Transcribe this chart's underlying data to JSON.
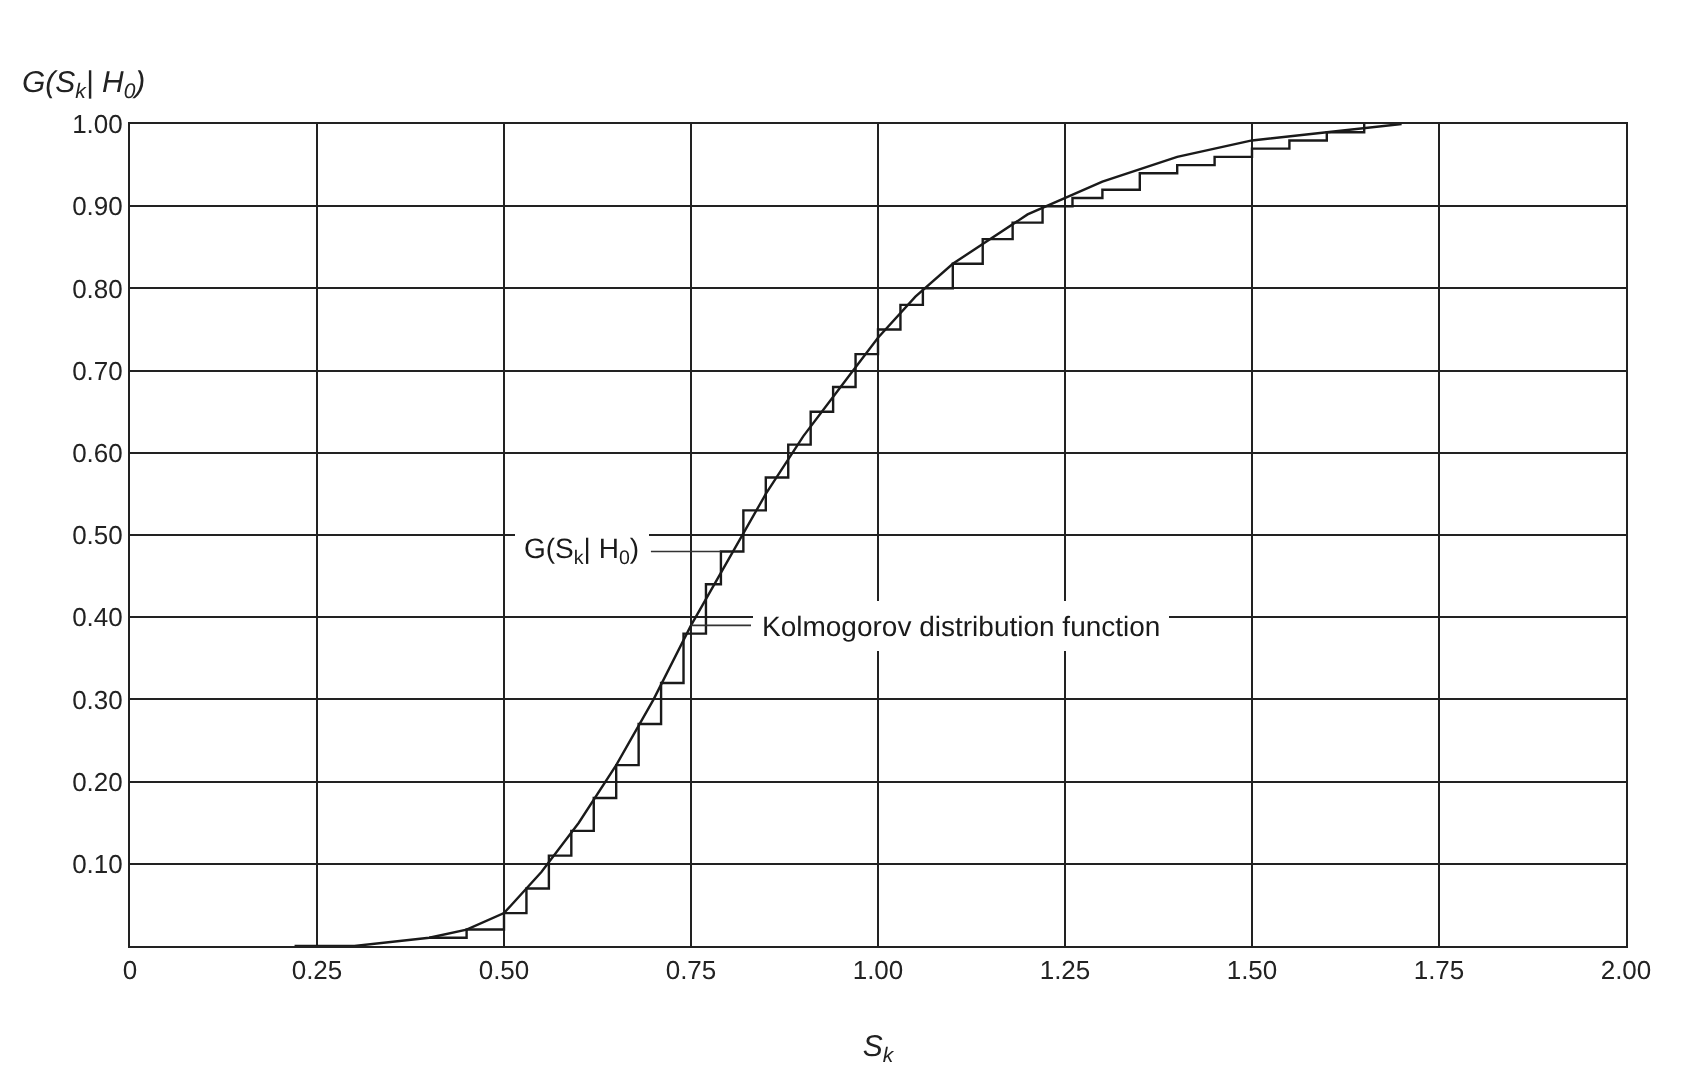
{
  "chart_data": {
    "type": "line",
    "xlabel": "S$_{k}$",
    "ylabel": "G(S$_{k}$| H$_{0}$)",
    "xlim": [
      0,
      2
    ],
    "ylim": [
      0,
      1
    ],
    "xticks": [
      {
        "value": 0,
        "label": "0"
      },
      0.25,
      {
        "value": 0.5,
        "label": "0.50"
      },
      0.75,
      {
        "value": 1,
        "label": "1.00"
      },
      1.25,
      {
        "value": 1.5,
        "label": "1.50"
      },
      1.75,
      {
        "value": 2,
        "label": "2.00"
      }
    ],
    "yticks": [
      {
        "value": 0,
        "label": null
      },
      {
        "value": 0.1,
        "label": "0.10"
      },
      {
        "value": 0.2,
        "label": "0.20"
      },
      {
        "value": 0.3,
        "label": "0.30"
      },
      {
        "value": 0.4,
        "label": "0.40"
      },
      {
        "value": 0.5,
        "label": "0.50"
      },
      {
        "value": 0.6,
        "label": "0.60"
      },
      {
        "value": 0.7,
        "label": "0.70"
      },
      {
        "value": 0.8,
        "label": "0.80"
      },
      {
        "value": 0.9,
        "label": "0.90"
      },
      {
        "value": 1,
        "label": "1.00"
      }
    ],
    "grid": true,
    "legend": false,
    "marker": "none",
    "line_style": "solid",
    "series": [
      {
        "name": "Kolmogorov distribution function",
        "type": "line",
        "color": "#1a1a1a",
        "x": [
          0.22,
          0.3,
          0.4,
          0.45,
          0.5,
          0.55,
          0.6,
          0.65,
          0.7,
          0.75,
          0.8,
          0.85,
          0.9,
          0.95,
          1.0,
          1.05,
          1.1,
          1.2,
          1.3,
          1.4,
          1.5,
          1.6,
          1.7
        ],
        "values": [
          0.0,
          0.0,
          0.01,
          0.02,
          0.04,
          0.09,
          0.15,
          0.22,
          0.3,
          0.39,
          0.47,
          0.55,
          0.62,
          0.68,
          0.74,
          0.79,
          0.83,
          0.89,
          0.93,
          0.96,
          0.98,
          0.99,
          1.0
        ]
      },
      {
        "name": "G(S$_{k}$| H$_{0}$)",
        "type": "step",
        "color": "#1a1a1a",
        "x": [
          0.4,
          0.45,
          0.5,
          0.53,
          0.56,
          0.59,
          0.62,
          0.65,
          0.68,
          0.71,
          0.74,
          0.77,
          0.79,
          0.82,
          0.85,
          0.88,
          0.91,
          0.94,
          0.97,
          1.0,
          1.03,
          1.06,
          1.1,
          1.14,
          1.18,
          1.22,
          1.26,
          1.3,
          1.35,
          1.4,
          1.45,
          1.5,
          1.55,
          1.6,
          1.65
        ],
        "values": [
          0.01,
          0.02,
          0.04,
          0.07,
          0.11,
          0.14,
          0.18,
          0.22,
          0.27,
          0.32,
          0.38,
          0.44,
          0.48,
          0.53,
          0.57,
          0.61,
          0.65,
          0.68,
          0.72,
          0.75,
          0.78,
          0.8,
          0.83,
          0.86,
          0.88,
          0.9,
          0.91,
          0.92,
          0.94,
          0.95,
          0.96,
          0.97,
          0.98,
          0.99,
          1.0
        ]
      }
    ]
  }
}
